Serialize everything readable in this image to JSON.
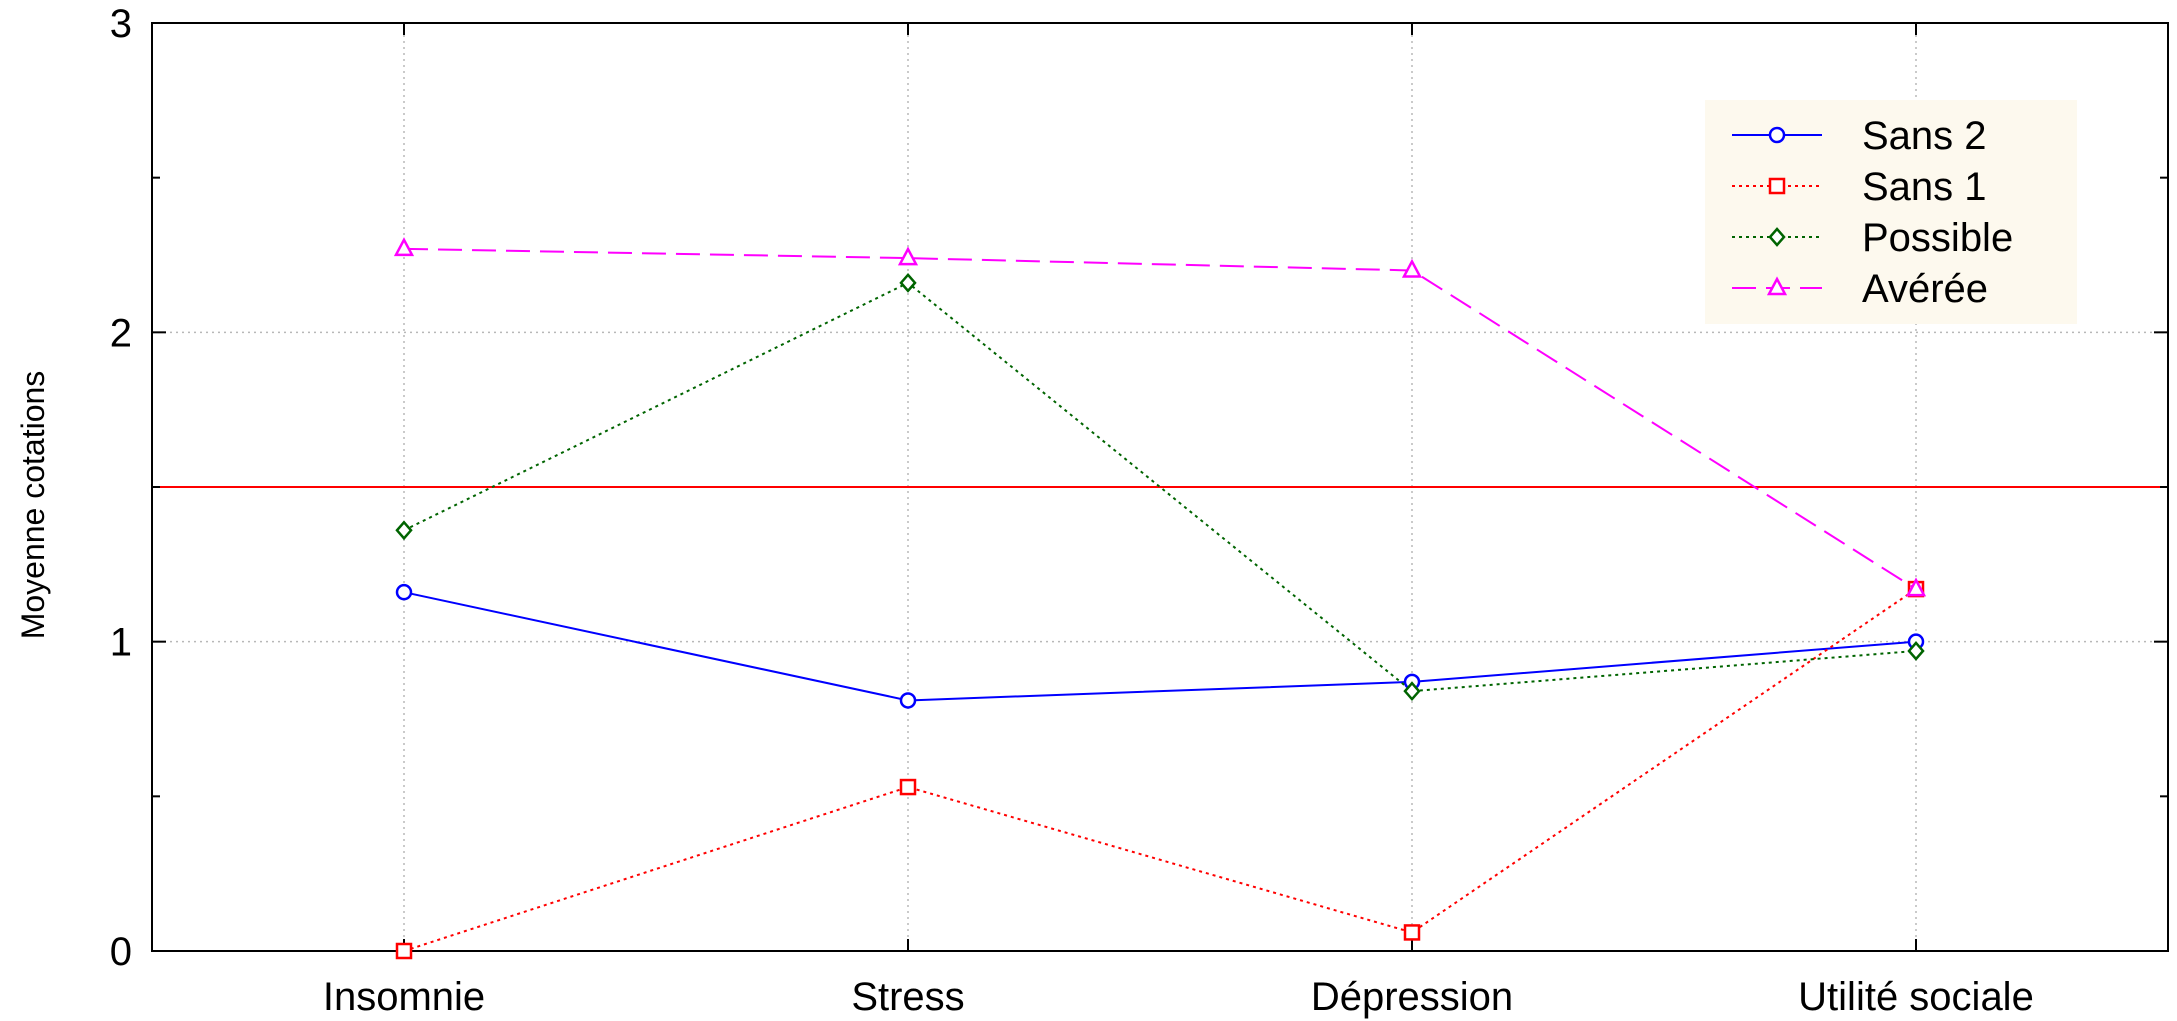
{
  "chart_data": {
    "type": "line",
    "title": "",
    "xlabel": "",
    "ylabel": "Moyenne cotations",
    "categories": [
      "Insomnie",
      "Stress",
      "Dépression",
      "Utilité sociale"
    ],
    "ylim": [
      0,
      3
    ],
    "yticks": [
      0,
      1,
      2,
      3
    ],
    "grid": true,
    "reference_line": {
      "y": 1.5,
      "color": "#ff0000"
    },
    "legend_position": "top-right",
    "series": [
      {
        "name": "Sans 2",
        "values": [
          1.16,
          0.81,
          0.87,
          1.0
        ],
        "color": "#0000ff",
        "marker": "circle",
        "line": "solid"
      },
      {
        "name": "Sans 1",
        "values": [
          0.0,
          0.53,
          0.06,
          1.17
        ],
        "color": "#ff0000",
        "marker": "square",
        "line": "dotted"
      },
      {
        "name": "Possible",
        "values": [
          1.36,
          2.16,
          0.84,
          0.97
        ],
        "color": "#006400",
        "marker": "diamond",
        "line": "dotted"
      },
      {
        "name": "Avérée",
        "values": [
          2.27,
          2.24,
          2.2,
          1.17
        ],
        "color": "#ff00ff",
        "marker": "triangle",
        "line": "dashed"
      }
    ]
  }
}
